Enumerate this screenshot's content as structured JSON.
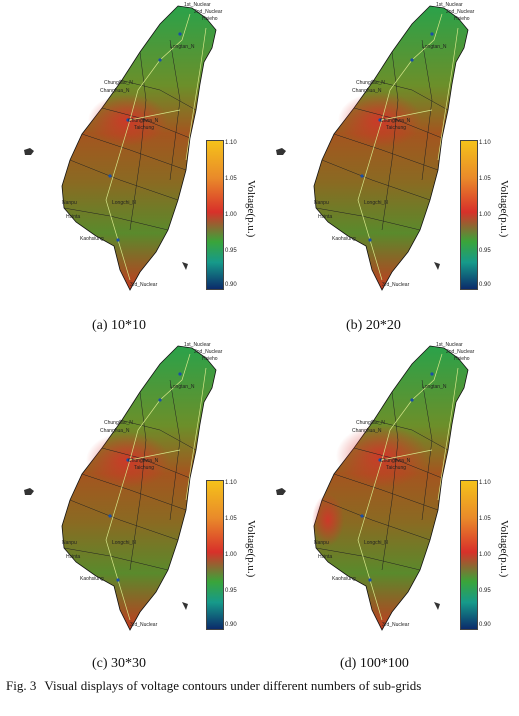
{
  "panels": [
    {
      "caption": "(a) 10*10"
    },
    {
      "caption": "(b) 20*20"
    },
    {
      "caption": "(c) 30*30"
    },
    {
      "caption": "(d) 100*100"
    }
  ],
  "colorbar": {
    "label": "Voltage(p.u.)",
    "ticks": [
      "1.10",
      "1.05",
      "1.00",
      "0.95",
      "0.90"
    ],
    "colors": [
      "#f5c21a",
      "#e98a2a",
      "#d8302a",
      "#3aa53a",
      "#169a8a",
      "#0b2b6b"
    ]
  },
  "map_labels": {
    "first_nuclear": "1st_Nuclear",
    "second_nuclear": "2nd_Nuclear",
    "fourth_nuclear": "Hsieho",
    "longtan": "Longtan_N",
    "chungliao_1": "Chungliao_N",
    "chungliao_2": "Changhua_N",
    "chungliao_3": "Chunghwa_N",
    "taichung": "Taichung",
    "nanpu": "Nanpu",
    "lunghsi": "Longchi_N",
    "maanshan": "3rd_Nuclear",
    "hsinta": "Hsinta",
    "kaohsiung": "Kaohsiung"
  },
  "figure": {
    "label": "Fig. 3",
    "text": "Visual displays of voltage contours under different numbers of sub-grids"
  }
}
